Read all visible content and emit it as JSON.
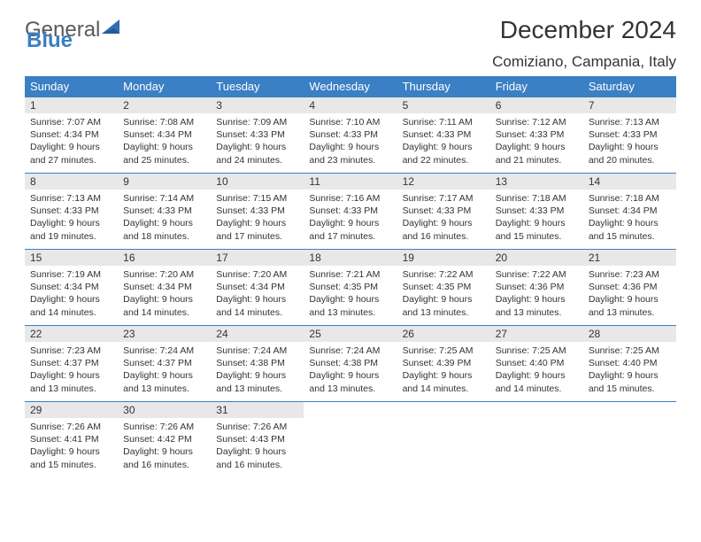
{
  "logo": {
    "word1": "General",
    "word2": "Blue",
    "triangle_color": "#2f6fb3"
  },
  "title": "December 2024",
  "location": "Comiziano, Campania, Italy",
  "colors": {
    "header_bg": "#3b7fc4",
    "daynum_bg": "#e8e8e8",
    "rule": "#3b7fc4"
  },
  "weekdays": [
    "Sunday",
    "Monday",
    "Tuesday",
    "Wednesday",
    "Thursday",
    "Friday",
    "Saturday"
  ],
  "days": [
    {
      "n": "1",
      "sunrise": "7:07 AM",
      "sunset": "4:34 PM",
      "daylight": "9 hours and 27 minutes."
    },
    {
      "n": "2",
      "sunrise": "7:08 AM",
      "sunset": "4:34 PM",
      "daylight": "9 hours and 25 minutes."
    },
    {
      "n": "3",
      "sunrise": "7:09 AM",
      "sunset": "4:33 PM",
      "daylight": "9 hours and 24 minutes."
    },
    {
      "n": "4",
      "sunrise": "7:10 AM",
      "sunset": "4:33 PM",
      "daylight": "9 hours and 23 minutes."
    },
    {
      "n": "5",
      "sunrise": "7:11 AM",
      "sunset": "4:33 PM",
      "daylight": "9 hours and 22 minutes."
    },
    {
      "n": "6",
      "sunrise": "7:12 AM",
      "sunset": "4:33 PM",
      "daylight": "9 hours and 21 minutes."
    },
    {
      "n": "7",
      "sunrise": "7:13 AM",
      "sunset": "4:33 PM",
      "daylight": "9 hours and 20 minutes."
    },
    {
      "n": "8",
      "sunrise": "7:13 AM",
      "sunset": "4:33 PM",
      "daylight": "9 hours and 19 minutes."
    },
    {
      "n": "9",
      "sunrise": "7:14 AM",
      "sunset": "4:33 PM",
      "daylight": "9 hours and 18 minutes."
    },
    {
      "n": "10",
      "sunrise": "7:15 AM",
      "sunset": "4:33 PM",
      "daylight": "9 hours and 17 minutes."
    },
    {
      "n": "11",
      "sunrise": "7:16 AM",
      "sunset": "4:33 PM",
      "daylight": "9 hours and 17 minutes."
    },
    {
      "n": "12",
      "sunrise": "7:17 AM",
      "sunset": "4:33 PM",
      "daylight": "9 hours and 16 minutes."
    },
    {
      "n": "13",
      "sunrise": "7:18 AM",
      "sunset": "4:33 PM",
      "daylight": "9 hours and 15 minutes."
    },
    {
      "n": "14",
      "sunrise": "7:18 AM",
      "sunset": "4:34 PM",
      "daylight": "9 hours and 15 minutes."
    },
    {
      "n": "15",
      "sunrise": "7:19 AM",
      "sunset": "4:34 PM",
      "daylight": "9 hours and 14 minutes."
    },
    {
      "n": "16",
      "sunrise": "7:20 AM",
      "sunset": "4:34 PM",
      "daylight": "9 hours and 14 minutes."
    },
    {
      "n": "17",
      "sunrise": "7:20 AM",
      "sunset": "4:34 PM",
      "daylight": "9 hours and 14 minutes."
    },
    {
      "n": "18",
      "sunrise": "7:21 AM",
      "sunset": "4:35 PM",
      "daylight": "9 hours and 13 minutes."
    },
    {
      "n": "19",
      "sunrise": "7:22 AM",
      "sunset": "4:35 PM",
      "daylight": "9 hours and 13 minutes."
    },
    {
      "n": "20",
      "sunrise": "7:22 AM",
      "sunset": "4:36 PM",
      "daylight": "9 hours and 13 minutes."
    },
    {
      "n": "21",
      "sunrise": "7:23 AM",
      "sunset": "4:36 PM",
      "daylight": "9 hours and 13 minutes."
    },
    {
      "n": "22",
      "sunrise": "7:23 AM",
      "sunset": "4:37 PM",
      "daylight": "9 hours and 13 minutes."
    },
    {
      "n": "23",
      "sunrise": "7:24 AM",
      "sunset": "4:37 PM",
      "daylight": "9 hours and 13 minutes."
    },
    {
      "n": "24",
      "sunrise": "7:24 AM",
      "sunset": "4:38 PM",
      "daylight": "9 hours and 13 minutes."
    },
    {
      "n": "25",
      "sunrise": "7:24 AM",
      "sunset": "4:38 PM",
      "daylight": "9 hours and 13 minutes."
    },
    {
      "n": "26",
      "sunrise": "7:25 AM",
      "sunset": "4:39 PM",
      "daylight": "9 hours and 14 minutes."
    },
    {
      "n": "27",
      "sunrise": "7:25 AM",
      "sunset": "4:40 PM",
      "daylight": "9 hours and 14 minutes."
    },
    {
      "n": "28",
      "sunrise": "7:25 AM",
      "sunset": "4:40 PM",
      "daylight": "9 hours and 15 minutes."
    },
    {
      "n": "29",
      "sunrise": "7:26 AM",
      "sunset": "4:41 PM",
      "daylight": "9 hours and 15 minutes."
    },
    {
      "n": "30",
      "sunrise": "7:26 AM",
      "sunset": "4:42 PM",
      "daylight": "9 hours and 16 minutes."
    },
    {
      "n": "31",
      "sunrise": "7:26 AM",
      "sunset": "4:43 PM",
      "daylight": "9 hours and 16 minutes."
    }
  ],
  "labels": {
    "sunrise": "Sunrise:",
    "sunset": "Sunset:",
    "daylight": "Daylight:"
  }
}
